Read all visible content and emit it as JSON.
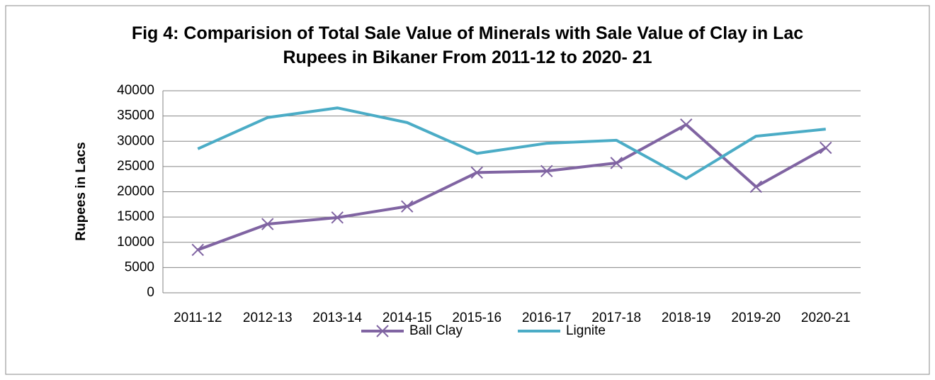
{
  "chart_data": {
    "type": "line",
    "title": "Fig 4: Comparision of Total Sale Value of Minerals with Sale Value of Clay in Lac Rupees in Bikaner From 2011-12 to 2020- 21",
    "y_label": "Rupees in Lacs",
    "categories": [
      "2011-12",
      "2012-13",
      "2013-14",
      "2014-15",
      "2015-16",
      "2016-17",
      "2017-18",
      "2018-19",
      "2019-20",
      "2020-21"
    ],
    "series": [
      {
        "name": "Ball Clay",
        "color": "#8064a2",
        "marker": "x",
        "values": [
          8500,
          13600,
          14900,
          17100,
          23800,
          24100,
          25700,
          33300,
          21000,
          28700
        ]
      },
      {
        "name": "Lignite",
        "color": "#4bacc6",
        "marker": "none",
        "values": [
          28500,
          34700,
          36600,
          33700,
          27600,
          29600,
          30200,
          22600,
          31000,
          32400
        ]
      }
    ],
    "ylim": [
      0,
      40000
    ],
    "yticks": [
      0,
      5000,
      10000,
      15000,
      20000,
      25000,
      30000,
      35000,
      40000
    ],
    "grid": true,
    "legend": "bottom"
  }
}
